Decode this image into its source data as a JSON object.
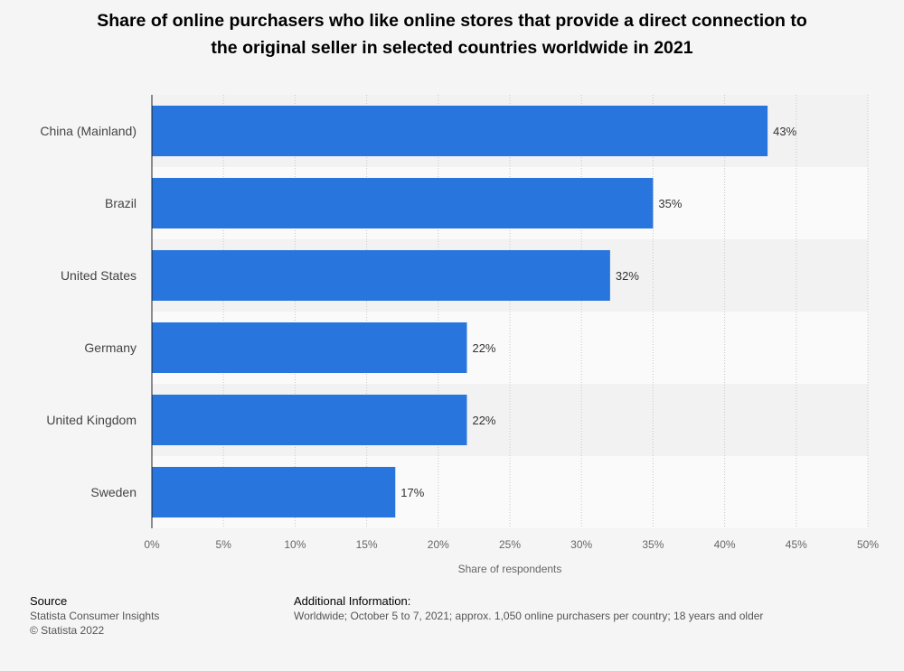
{
  "title_lines": [
    "Share of online purchasers who like online stores that provide a direct connection to",
    "the original seller in selected countries worldwide in 2021"
  ],
  "chart_data": {
    "type": "bar",
    "orientation": "horizontal",
    "title": "Share of online purchasers who like online stores that provide a direct connection to the original seller in selected countries worldwide in 2021",
    "categories": [
      "China (Mainland)",
      "Brazil",
      "United States",
      "Germany",
      "United Kingdom",
      "Sweden"
    ],
    "values": [
      43,
      35,
      32,
      22,
      22,
      17
    ],
    "value_labels": [
      "43%",
      "35%",
      "32%",
      "22%",
      "22%",
      "17%"
    ],
    "xlabel": "Share of respondents",
    "ylabel": "",
    "xlim": [
      0,
      50
    ],
    "ticks": [
      0,
      5,
      10,
      15,
      20,
      25,
      30,
      35,
      40,
      45,
      50
    ],
    "tick_labels": [
      "0%",
      "5%",
      "10%",
      "15%",
      "20%",
      "25%",
      "30%",
      "35%",
      "40%",
      "45%",
      "50%"
    ],
    "bar_color": "#2876dd",
    "grid": true
  },
  "footer": {
    "source_heading": "Source",
    "source_lines": [
      "Statista Consumer Insights",
      "© Statista 2022"
    ],
    "info_heading": "Additional Information:",
    "info_text": "Worldwide; October 5 to 7, 2021; approx. 1,050 online purchasers per country; 18 years and older"
  }
}
